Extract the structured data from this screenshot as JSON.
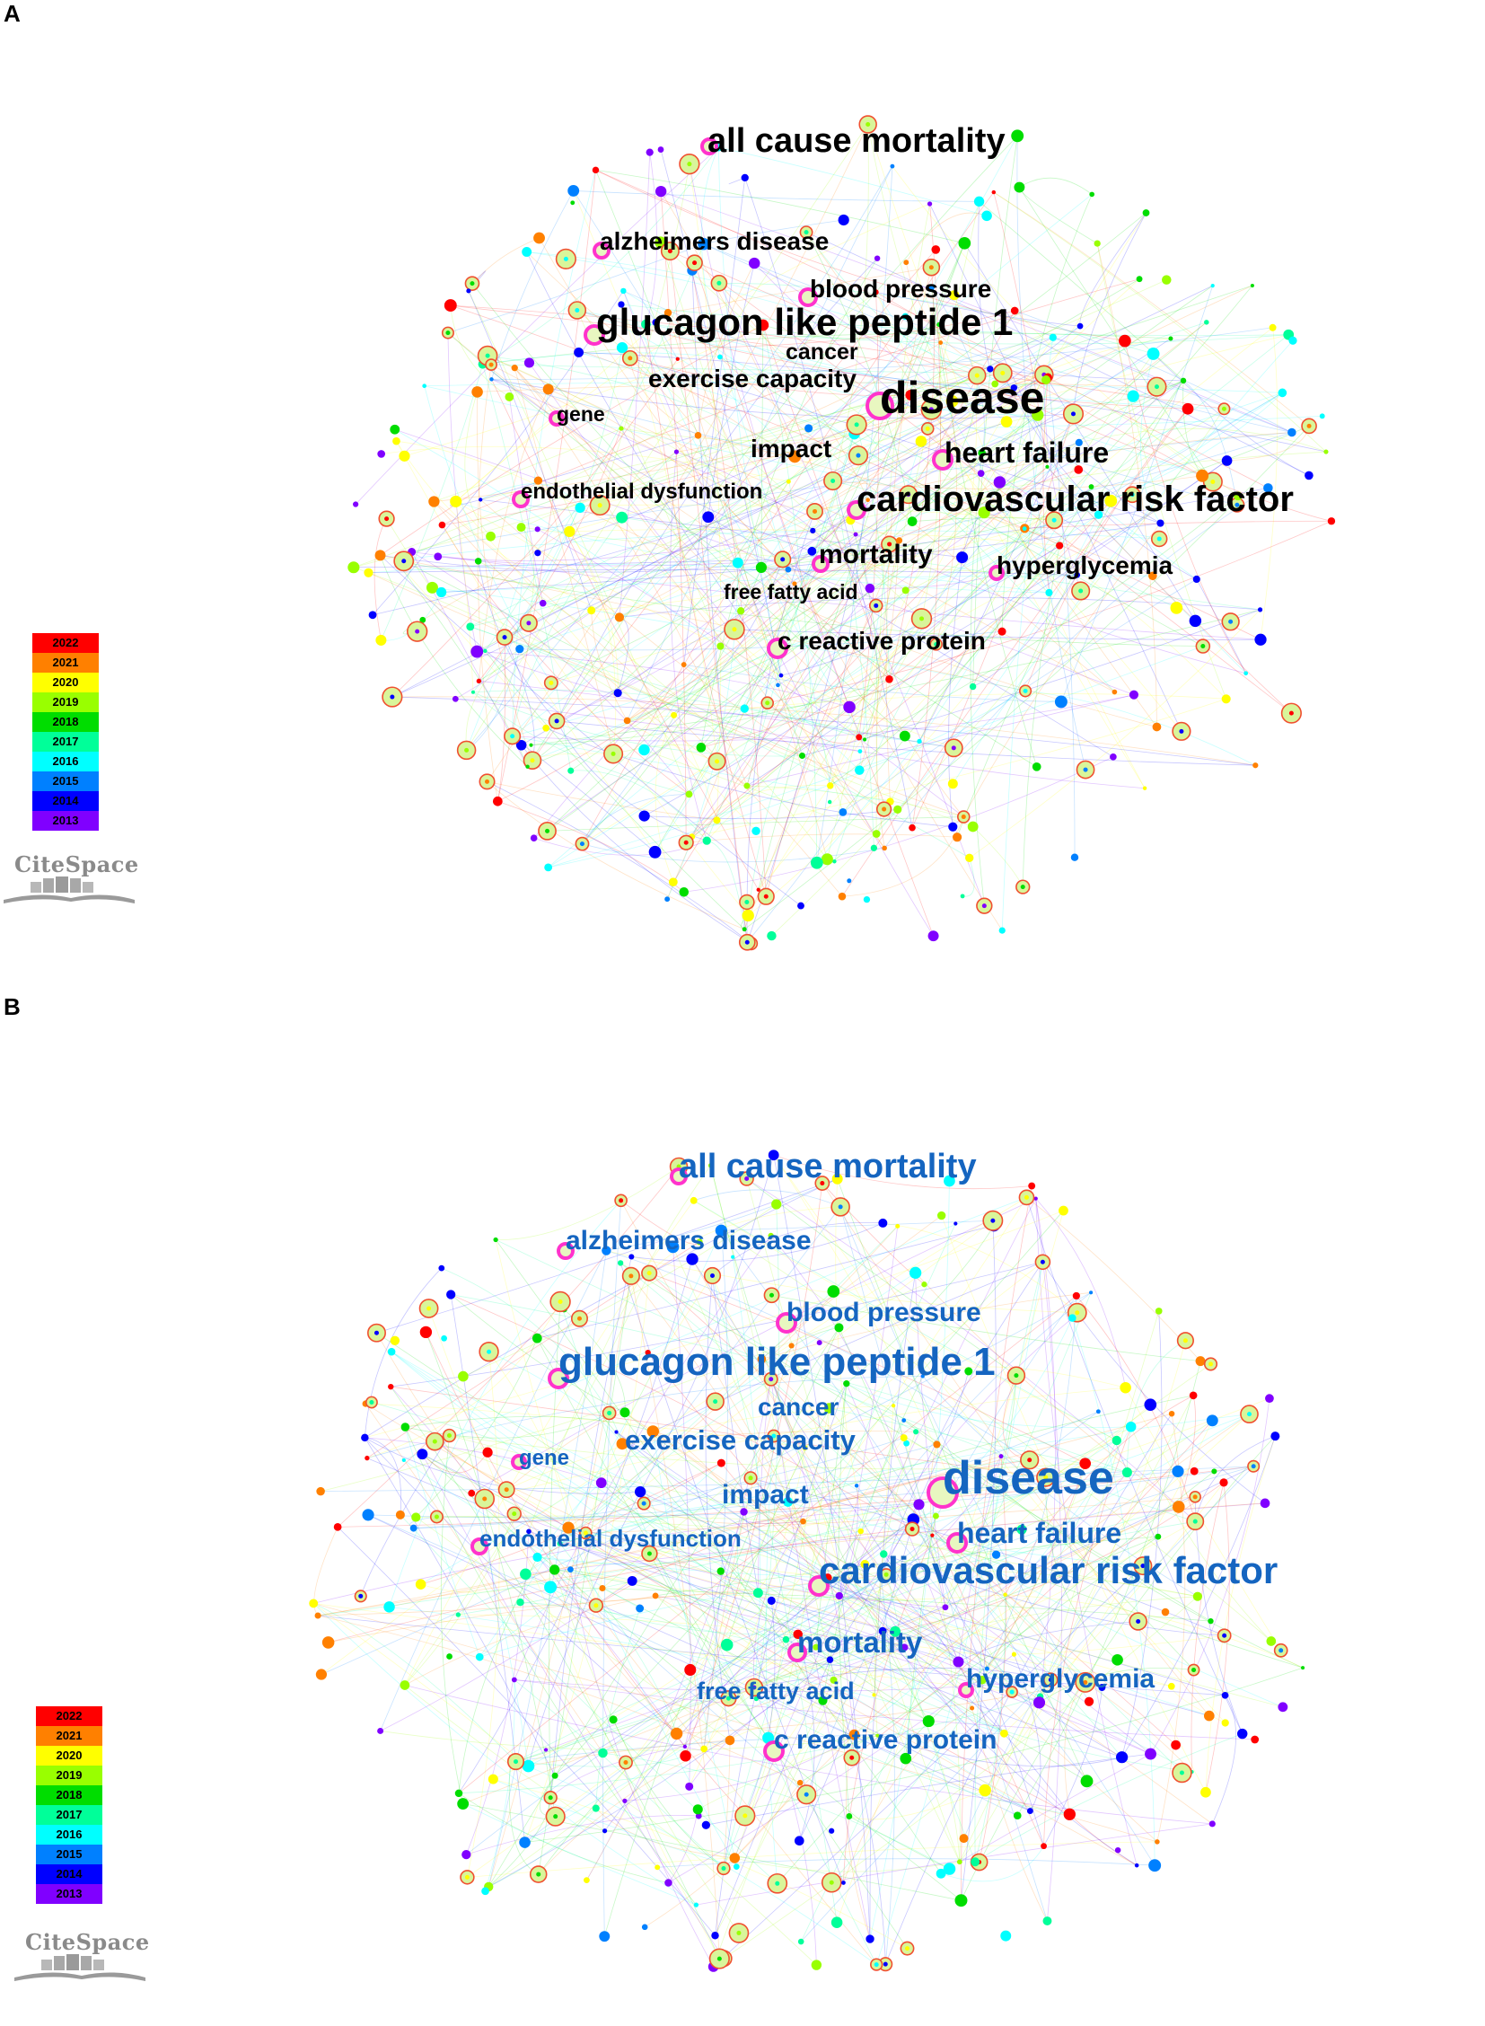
{
  "colors": {
    "years": {
      "2022": "#ff0000",
      "2021": "#ff8000",
      "2020": "#ffff00",
      "2019": "#99ff00",
      "2018": "#00dd00",
      "2017": "#00ff99",
      "2016": "#00ffff",
      "2015": "#0080ff",
      "2014": "#0000ff",
      "2013": "#8000ff"
    },
    "hub_ring": "#ff33cc",
    "label_a": "#000000",
    "label_b": "#1565c0"
  },
  "panels": [
    {
      "letter": "A",
      "keywords": [
        "all cause mortality",
        "alzheimers disease",
        "blood pressure",
        "glucagon like peptide 1",
        "cancer",
        "exercise capacity",
        "disease",
        "gene",
        "impact",
        "heart failure",
        "endothelial dysfunction",
        "cardiovascular risk factor",
        "mortality",
        "hyperglycemia",
        "free fatty acid",
        "c reactive protein"
      ],
      "legend_years": [
        "2022",
        "2021",
        "2020",
        "2019",
        "2018",
        "2017",
        "2016",
        "2015",
        "2014",
        "2013"
      ],
      "logo_text": "CiteSpace"
    },
    {
      "letter": "B",
      "keywords": [
        "all cause mortality",
        "alzheimers disease",
        "blood pressure",
        "glucagon like peptide 1",
        "cancer",
        "exercise capacity",
        "disease",
        "gene",
        "impact",
        "heart failure",
        "endothelial dysfunction",
        "cardiovascular risk factor",
        "mortality",
        "hyperglycemia",
        "free fatty acid",
        "c reactive protein"
      ],
      "legend_years": [
        "2022",
        "2021",
        "2020",
        "2019",
        "2018",
        "2017",
        "2016",
        "2015",
        "2014",
        "2013"
      ],
      "logo_text": "CiteSpace"
    }
  ]
}
